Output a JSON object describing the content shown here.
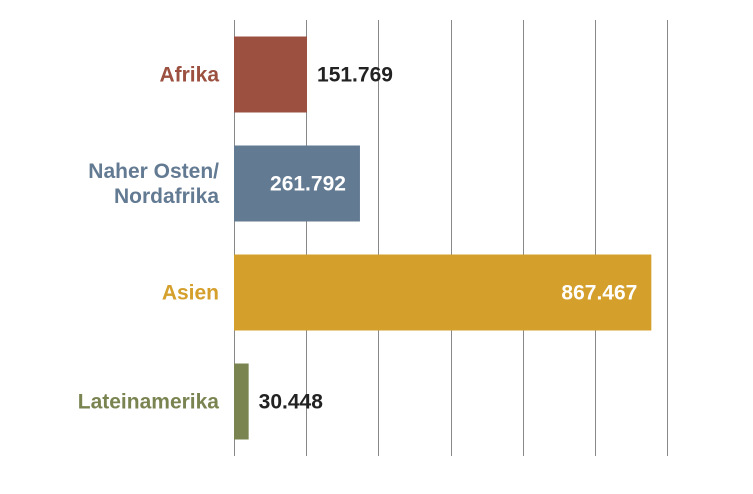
{
  "chart_data": {
    "type": "bar",
    "orientation": "horizontal",
    "categories": [
      {
        "label_lines": [
          "Afrika"
        ],
        "color": "#9b5040"
      },
      {
        "label_lines": [
          "Naher Osten/",
          "Nordafrika"
        ],
        "color": "#637a93"
      },
      {
        "label_lines": [
          "Asien"
        ],
        "color": "#d4a02b"
      },
      {
        "label_lines": [
          "Lateinamerika"
        ],
        "color": "#7a8451"
      }
    ],
    "values": [
      151769,
      261792,
      867467,
      30448
    ],
    "value_labels": [
      "151.769",
      "261.792",
      "867.467",
      "30.448"
    ],
    "value_label_inside": [
      false,
      true,
      true,
      false
    ],
    "xlim": [
      0,
      900000
    ],
    "grid_step": 150000,
    "grid": true,
    "legend": "none",
    "colors": {
      "grid": "#888888",
      "inside_label": "#ffffff",
      "outside_label": "#222222"
    }
  }
}
